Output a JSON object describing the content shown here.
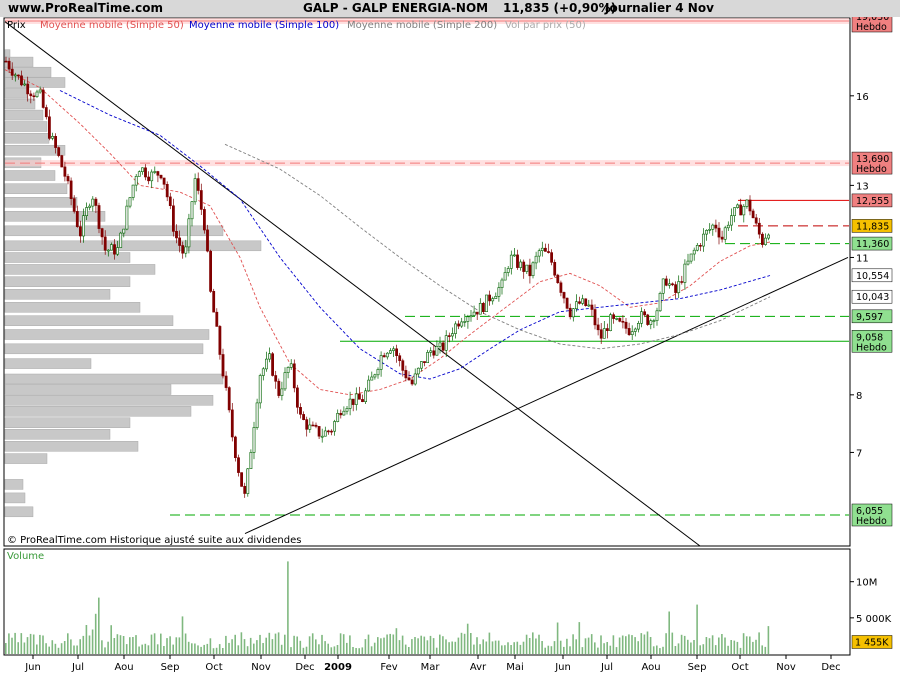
{
  "header": {
    "site": "www.ProRealTime.com",
    "instrument": "GALP - GALP ENERGIA-NOM",
    "price_change": "11,835 (+0,90%)",
    "period": "Journalier  4 Nov"
  },
  "legend": {
    "prix": "Prix",
    "ma50": "Moyenne mobile (Simple 50)",
    "ma100": "Moyenne mobile (Simple 100)",
    "ma200": "Moyenne mobile (Simple 200)",
    "vol": "Vol par prix (50)"
  },
  "footer_note": "© ProRealTime.com Historique ajusté suite aux dividendes",
  "volume_label": "Volume",
  "colors": {
    "ma50": "#e05050",
    "ma100": "#0000cc",
    "ma200": "#808080",
    "candle_up": "#006400",
    "candle_down": "#800000",
    "volume": "#7fb87f",
    "resistance": "#e00000",
    "support": "#00aa00",
    "current": "#f5c000"
  },
  "chart_data": {
    "type": "candlestick",
    "x_ticks": [
      "Jun",
      "Jul",
      "Aou",
      "Sep",
      "Oct",
      "Nov",
      "Dec",
      "2009",
      "Fev",
      "Mar",
      "Avr",
      "Mai",
      "Jun",
      "Jul",
      "Aou",
      "Sep",
      "Oct",
      "Nov",
      "Dec"
    ],
    "y_ticks": [
      "16",
      "13",
      "11",
      "8",
      "7"
    ],
    "y_scale": "log",
    "ylim": [
      5.7,
      19.5
    ],
    "close_series": [
      [
        0,
        17.2
      ],
      [
        5,
        17.4
      ],
      [
        10,
        17.1
      ],
      [
        20,
        16.6
      ],
      [
        30,
        16.2
      ],
      [
        40,
        16.0
      ],
      [
        50,
        14.6
      ],
      [
        55,
        14.2
      ],
      [
        65,
        13.3
      ],
      [
        80,
        11.6
      ],
      [
        92,
        12.8
      ],
      [
        105,
        11.2
      ],
      [
        118,
        11.2
      ],
      [
        128,
        12.4
      ],
      [
        138,
        13.6
      ],
      [
        150,
        13.3
      ],
      [
        162,
        13.4
      ],
      [
        175,
        11.6
      ],
      [
        185,
        11.0
      ],
      [
        195,
        13.2
      ],
      [
        205,
        11.8
      ],
      [
        210,
        10.2
      ],
      [
        220,
        8.8
      ],
      [
        232,
        7.3
      ],
      [
        240,
        6.6
      ],
      [
        245,
        6.3
      ],
      [
        252,
        7.2
      ],
      [
        260,
        8.4
      ],
      [
        270,
        8.7
      ],
      [
        278,
        8.0
      ],
      [
        290,
        8.6
      ],
      [
        300,
        7.6
      ],
      [
        310,
        7.4
      ],
      [
        322,
        7.3
      ],
      [
        332,
        7.4
      ],
      [
        342,
        7.8
      ],
      [
        352,
        7.9
      ],
      [
        362,
        7.9
      ],
      [
        372,
        8.3
      ],
      [
        382,
        8.8
      ],
      [
        392,
        9.0
      ],
      [
        402,
        8.5
      ],
      [
        412,
        8.2
      ],
      [
        422,
        8.6
      ],
      [
        432,
        8.9
      ],
      [
        442,
        8.9
      ],
      [
        452,
        9.3
      ],
      [
        462,
        9.6
      ],
      [
        472,
        9.7
      ],
      [
        482,
        9.8
      ],
      [
        492,
        10.1
      ],
      [
        502,
        10.3
      ],
      [
        510,
        11.0
      ],
      [
        520,
        10.8
      ],
      [
        530,
        10.6
      ],
      [
        540,
        11.2
      ],
      [
        550,
        11.0
      ],
      [
        560,
        10.3
      ],
      [
        570,
        9.7
      ],
      [
        580,
        9.9
      ],
      [
        590,
        9.8
      ],
      [
        600,
        9.1
      ],
      [
        610,
        9.5
      ],
      [
        620,
        9.4
      ],
      [
        630,
        9.3
      ],
      [
        640,
        9.6
      ],
      [
        650,
        9.5
      ],
      [
        658,
        9.8
      ],
      [
        665,
        10.5
      ],
      [
        675,
        10.1
      ],
      [
        685,
        10.7
      ],
      [
        695,
        11.2
      ],
      [
        705,
        11.6
      ],
      [
        715,
        11.9
      ],
      [
        722,
        11.5
      ],
      [
        730,
        12.1
      ],
      [
        740,
        12.3
      ],
      [
        748,
        12.5
      ],
      [
        755,
        11.9
      ],
      [
        762,
        11.4
      ],
      [
        770,
        11.83
      ]
    ],
    "ma50": [
      [
        5,
        17.0
      ],
      [
        40,
        16.3
      ],
      [
        80,
        15.0
      ],
      [
        110,
        14.0
      ],
      [
        140,
        13.0
      ],
      [
        180,
        12.8
      ],
      [
        210,
        12.4
      ],
      [
        240,
        11.0
      ],
      [
        260,
        9.8
      ],
      [
        290,
        8.6
      ],
      [
        320,
        8.1
      ],
      [
        350,
        8.0
      ],
      [
        380,
        8.1
      ],
      [
        410,
        8.3
      ],
      [
        440,
        8.7
      ],
      [
        470,
        9.2
      ],
      [
        500,
        9.7
      ],
      [
        540,
        10.4
      ],
      [
        570,
        10.6
      ],
      [
        600,
        10.3
      ],
      [
        630,
        9.8
      ],
      [
        660,
        9.9
      ],
      [
        690,
        10.3
      ],
      [
        720,
        10.9
      ],
      [
        750,
        11.3
      ],
      [
        770,
        11.4
      ]
    ],
    "ma100": [
      [
        60,
        16.2
      ],
      [
        110,
        15.3
      ],
      [
        160,
        14.6
      ],
      [
        200,
        13.6
      ],
      [
        240,
        12.6
      ],
      [
        280,
        11.0
      ],
      [
        320,
        9.8
      ],
      [
        360,
        8.9
      ],
      [
        400,
        8.4
      ],
      [
        430,
        8.3
      ],
      [
        460,
        8.5
      ],
      [
        490,
        8.9
      ],
      [
        520,
        9.3
      ],
      [
        560,
        9.7
      ],
      [
        600,
        9.8
      ],
      [
        640,
        9.9
      ],
      [
        680,
        10.0
      ],
      [
        720,
        10.2
      ],
      [
        770,
        10.55
      ]
    ],
    "ma200": [
      [
        225,
        14.3
      ],
      [
        280,
        13.5
      ],
      [
        320,
        12.7
      ],
      [
        360,
        11.8
      ],
      [
        400,
        11.0
      ],
      [
        440,
        10.3
      ],
      [
        480,
        9.7
      ],
      [
        520,
        9.3
      ],
      [
        560,
        9.0
      ],
      [
        600,
        8.9
      ],
      [
        640,
        9.0
      ],
      [
        680,
        9.2
      ],
      [
        720,
        9.5
      ],
      [
        770,
        10.04
      ]
    ],
    "trendlines": [
      {
        "from": [
          5,
          19.0
        ],
        "to": [
          700,
          5.4
        ]
      },
      {
        "from": [
          245,
          5.8
        ],
        "to": [
          848,
          11.0
        ]
      }
    ],
    "levels": [
      {
        "value": 19.03,
        "label": "19,030",
        "sub": "Hebdo",
        "color": "#f08080",
        "x0": 5,
        "dash": false
      },
      {
        "value": 13.69,
        "label": "13,690",
        "sub": "Hebdo",
        "color": "#f08080",
        "x0": 5,
        "dash": true
      },
      {
        "value": 12.555,
        "label": "12,555",
        "sub": "",
        "color": "#f08080",
        "x0": 738,
        "dash": false
      },
      {
        "value": 11.835,
        "label": "11,835",
        "sub": "",
        "color": "#f5c000",
        "x0": 738,
        "dash": true
      },
      {
        "value": 11.36,
        "label": "11,360",
        "sub": "",
        "color": "#90e090",
        "x0": 725,
        "dash": true
      },
      {
        "value": 10.554,
        "label": "10,554",
        "sub": "",
        "color": "#ffffff",
        "x0": null,
        "dash": false
      },
      {
        "value": 10.043,
        "label": "10,043",
        "sub": "",
        "color": "#ffffff",
        "x0": null,
        "dash": false
      },
      {
        "value": 9.597,
        "label": "9,597",
        "sub": "",
        "color": "#90e090",
        "x0": 405,
        "dash": true
      },
      {
        "value": 9.058,
        "label": "9,058",
        "sub": "Hebdo",
        "color": "#90e090",
        "x0": 340,
        "dash": false
      },
      {
        "value": 6.055,
        "label": "6,055",
        "sub": "Hebdo",
        "color": "#90e090",
        "x0": 170,
        "dash": true
      }
    ],
    "volume_by_price": [
      [
        17.6,
        5
      ],
      [
        17.3,
        28
      ],
      [
        16.9,
        46
      ],
      [
        16.5,
        60
      ],
      [
        16.1,
        22
      ],
      [
        15.7,
        30
      ],
      [
        15.3,
        38
      ],
      [
        14.9,
        42
      ],
      [
        14.5,
        44
      ],
      [
        14.1,
        60
      ],
      [
        13.7,
        36
      ],
      [
        13.3,
        50
      ],
      [
        12.9,
        62
      ],
      [
        12.5,
        72
      ],
      [
        12.1,
        100
      ],
      [
        11.7,
        218
      ],
      [
        11.3,
        256
      ],
      [
        11.0,
        125
      ],
      [
        10.7,
        150
      ],
      [
        10.4,
        125
      ],
      [
        10.1,
        105
      ],
      [
        9.8,
        135
      ],
      [
        9.5,
        168
      ],
      [
        9.2,
        204
      ],
      [
        8.9,
        198
      ],
      [
        8.6,
        86
      ],
      [
        8.3,
        218
      ],
      [
        8.1,
        166
      ],
      [
        7.9,
        208
      ],
      [
        7.7,
        186
      ],
      [
        7.5,
        125
      ],
      [
        7.3,
        105
      ],
      [
        7.1,
        133
      ],
      [
        6.9,
        42
      ],
      [
        6.5,
        18
      ],
      [
        6.3,
        20
      ],
      [
        6.1,
        28
      ]
    ],
    "volume_ticks": [
      "10M",
      "5 000K"
    ],
    "volume_current": "1 455K",
    "volume_max": 13000000
  }
}
